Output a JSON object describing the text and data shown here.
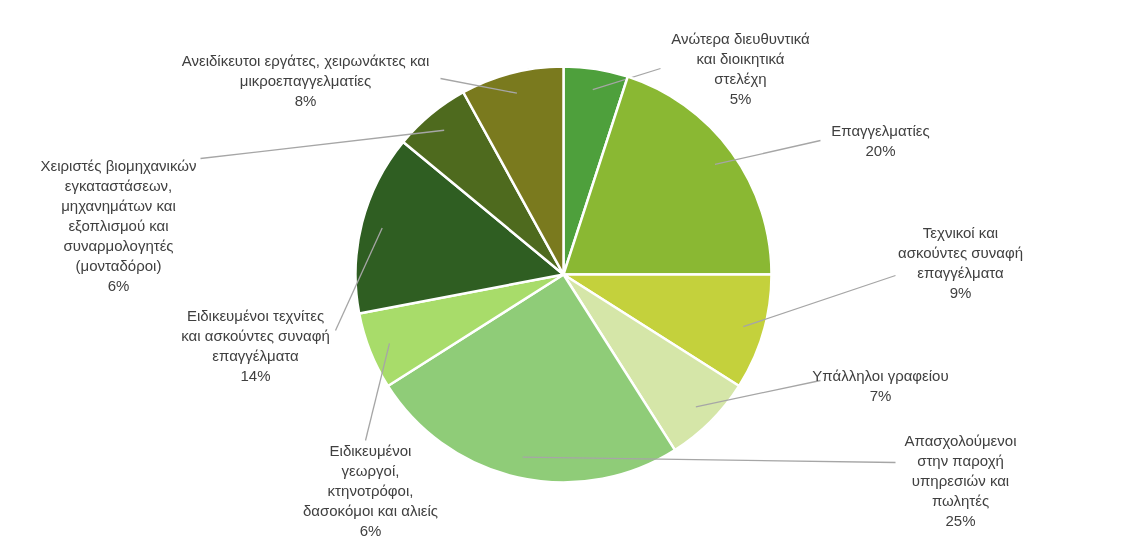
{
  "chart_data": {
    "type": "pie",
    "categories": [
      "Ανώτερα διευθυντικά και διοικητικά στελέχη",
      "Επαγγελματίες",
      "Τεχνικοί και ασκούντες συναφή επαγγέλματα",
      "Υπάλληλοι γραφείου",
      "Απασχολούμενοι στην παροχή υπηρεσιών και πωλητές",
      "Ειδικευμένοι γεωργοί, κτηνοτρόφοι, δασοκόμοι και αλιείς",
      "Ειδικευμένοι τεχνίτες και ασκούντες συναφή επαγγέλματα",
      "Χειριστές βιομηχανικών εγκαταστάσεων, μηχανημάτων και εξοπλισμού και συναρμολογητές (μονταδόροι)",
      "Ανειδίκευτοι εργάτες, χειρωνάκτες και μικροεπαγγελματίες"
    ],
    "values": [
      5,
      20,
      9,
      7,
      25,
      6,
      14,
      6,
      8
    ],
    "colors": [
      "#4ea03c",
      "#8ab833",
      "#c4d13c",
      "#d5e6a8",
      "#8fcc78",
      "#a8dc6a",
      "#2f5e22",
      "#4e6a1e",
      "#7a7a1e"
    ],
    "value_labels": [
      "5%",
      "20%",
      "9%",
      "7%",
      "25%",
      "6%",
      "14%",
      "6%",
      "8%"
    ]
  }
}
